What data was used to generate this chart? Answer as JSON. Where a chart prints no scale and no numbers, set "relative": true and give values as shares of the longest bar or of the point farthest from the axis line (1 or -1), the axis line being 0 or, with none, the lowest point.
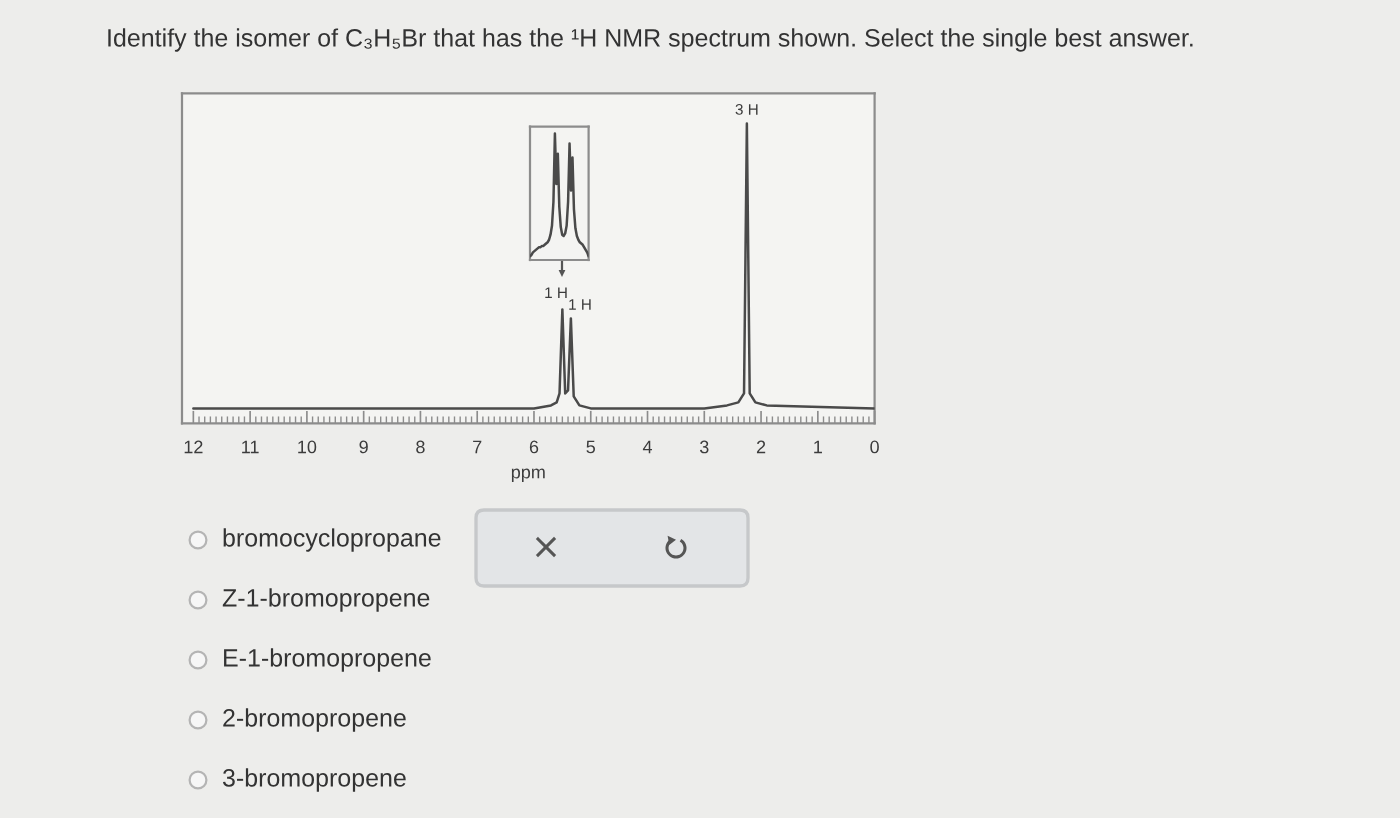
{
  "chart_data": [
    {
      "type": "line",
      "title": "Identify the isomer of C₃H₅Br that has the ¹H NMR spectrum shown. Select the single best answer.",
      "xlabel": "ppm",
      "relative": true,
      "tick_labels": "x",
      "color": "#4a4a4a",
      "x": [
        12,
        6,
        5.7,
        5.6,
        5.55,
        5.5,
        5.45,
        5.4,
        5.35,
        5.3,
        5.2,
        5,
        3,
        2.6,
        2.4,
        2.3,
        2.25,
        2.2,
        2.1,
        1.9,
        0
      ],
      "values": [
        0.05,
        0.05,
        0.06,
        0.07,
        0.1,
        0.38,
        0.1,
        0.11,
        0.35,
        0.09,
        0.06,
        0.05,
        0.05,
        0.06,
        0.07,
        0.1,
        1,
        0.1,
        0.07,
        0.06,
        0.05
      ],
      "xlim": [
        12.2,
        0
      ],
      "xticks": [
        12,
        11,
        10,
        9,
        8,
        7,
        6,
        5,
        4,
        3,
        2,
        1,
        0,
        {
          "value": 11.9,
          "label": null
        },
        {
          "value": 11.8,
          "label": null
        },
        {
          "value": 11.7,
          "label": null
        },
        {
          "value": 11.6,
          "label": null
        },
        {
          "value": 11.5,
          "label": null
        },
        {
          "value": 11.4,
          "label": null
        },
        {
          "value": 11.3,
          "label": null
        },
        {
          "value": 11.2,
          "label": null
        },
        {
          "value": 11.1,
          "label": null
        },
        {
          "value": 10.9,
          "label": null
        },
        {
          "value": 10.8,
          "label": null
        },
        {
          "value": 10.7,
          "label": null
        },
        {
          "value": 10.6,
          "label": null
        },
        {
          "value": 10.5,
          "label": null
        },
        {
          "value": 10.4,
          "label": null
        },
        {
          "value": 10.3,
          "label": null
        },
        {
          "value": 10.2,
          "label": null
        },
        {
          "value": 10.1,
          "label": null
        },
        {
          "value": 9.9,
          "label": null
        },
        {
          "value": 9.8,
          "label": null
        },
        {
          "value": 9.7,
          "label": null
        },
        {
          "value": 9.6,
          "label": null
        },
        {
          "value": 9.5,
          "label": null
        },
        {
          "value": 9.4,
          "label": null
        },
        {
          "value": 9.3,
          "label": null
        },
        {
          "value": 9.2,
          "label": null
        },
        {
          "value": 9.1,
          "label": null
        },
        {
          "value": 8.9,
          "label": null
        },
        {
          "value": 8.8,
          "label": null
        },
        {
          "value": 8.7,
          "label": null
        },
        {
          "value": 8.6,
          "label": null
        },
        {
          "value": 8.5,
          "label": null
        },
        {
          "value": 8.4,
          "label": null
        },
        {
          "value": 8.3,
          "label": null
        },
        {
          "value": 8.2,
          "label": null
        },
        {
          "value": 8.1,
          "label": null
        },
        {
          "value": 7.9,
          "label": null
        },
        {
          "value": 7.8,
          "label": null
        },
        {
          "value": 7.7,
          "label": null
        },
        {
          "value": 7.6,
          "label": null
        },
        {
          "value": 7.5,
          "label": null
        },
        {
          "value": 7.4,
          "label": null
        },
        {
          "value": 7.3,
          "label": null
        },
        {
          "value": 7.2,
          "label": null
        },
        {
          "value": 7.1,
          "label": null
        },
        {
          "value": 6.9,
          "label": null
        },
        {
          "value": 6.8,
          "label": null
        },
        {
          "value": 6.7,
          "label": null
        },
        {
          "value": 6.6,
          "label": null
        },
        {
          "value": 6.5,
          "label": null
        },
        {
          "value": 6.4,
          "label": null
        },
        {
          "value": 6.3,
          "label": null
        },
        {
          "value": 6.2,
          "label": null
        },
        {
          "value": 6.1,
          "label": null
        },
        {
          "value": 5.9,
          "label": null
        },
        {
          "value": 5.8,
          "label": null
        },
        {
          "value": 5.7,
          "label": null
        },
        {
          "value": 5.6,
          "label": null
        },
        {
          "value": 5.5,
          "label": null
        },
        {
          "value": 5.4,
          "label": null
        },
        {
          "value": 5.3,
          "label": null
        },
        {
          "value": 5.2,
          "label": null
        },
        {
          "value": 5.1,
          "label": null
        },
        {
          "value": 4.9,
          "label": null
        },
        {
          "value": 4.8,
          "label": null
        },
        {
          "value": 4.7,
          "label": null
        },
        {
          "value": 4.6,
          "label": null
        },
        {
          "value": 4.5,
          "label": null
        },
        {
          "value": 4.4,
          "label": null
        },
        {
          "value": 4.3,
          "label": null
        },
        {
          "value": 4.2,
          "label": null
        },
        {
          "value": 4.1,
          "label": null
        },
        {
          "value": 3.9,
          "label": null
        },
        {
          "value": 3.8,
          "label": null
        },
        {
          "value": 3.7,
          "label": null
        },
        {
          "value": 3.6,
          "label": null
        },
        {
          "value": 3.5,
          "label": null
        },
        {
          "value": 3.4,
          "label": null
        },
        {
          "value": 3.3,
          "label": null
        },
        {
          "value": 3.2,
          "label": null
        },
        {
          "value": 3.1,
          "label": null
        },
        {
          "value": 2.9,
          "label": null
        },
        {
          "value": 2.8,
          "label": null
        },
        {
          "value": 2.7,
          "label": null
        },
        {
          "value": 2.6,
          "label": null
        },
        {
          "value": 2.5,
          "label": null
        },
        {
          "value": 2.4,
          "label": null
        },
        {
          "value": 2.3,
          "label": null
        },
        {
          "value": 2.2,
          "label": null
        },
        {
          "value": 2.1,
          "label": null
        },
        {
          "value": 1.9,
          "label": null
        },
        {
          "value": 1.8,
          "label": null
        },
        {
          "value": 1.7,
          "label": null
        },
        {
          "value": 1.6,
          "label": null
        },
        {
          "value": 1.5,
          "label": null
        },
        {
          "value": 1.4,
          "label": null
        },
        {
          "value": 1.3,
          "label": null
        },
        {
          "value": 1.2,
          "label": null
        },
        {
          "value": 1.1,
          "label": null
        },
        {
          "value": 0.9,
          "label": null
        },
        {
          "value": 0.8,
          "label": null
        },
        {
          "value": 0.7,
          "label": null
        },
        {
          "value": 0.6,
          "label": null
        },
        {
          "value": 0.5,
          "label": null
        },
        {
          "value": 0.4,
          "label": null
        },
        {
          "value": 0.3,
          "label": null
        },
        {
          "value": 0.2,
          "label": null
        },
        {
          "value": 0.1,
          "label": null
        }
      ],
      "annotations": [
        {
          "text": "1 H",
          "x": 5.5,
          "y": 0.38
        },
        {
          "text": "1 H",
          "x": 5.35,
          "y": 0.35
        },
        {
          "text": "3 H",
          "x": 2.25,
          "y": 1
        },
        "bromocyclopropane",
        "Z-1-bromopropene",
        "E-1-bromopropene",
        "2-bromopropene",
        "3-bromopropene"
      ]
    },
    {
      "type": "line",
      "relative": true,
      "color": "#4a4a4a",
      "categories": [
        null,
        null,
        null,
        null,
        null,
        null,
        null,
        null,
        null,
        null,
        null,
        null,
        null,
        null,
        null,
        null,
        null,
        null,
        null,
        null,
        null,
        null,
        null,
        null,
        null,
        null,
        null,
        null,
        null,
        null,
        null,
        null,
        null,
        null,
        null,
        null,
        null,
        null,
        null,
        null,
        null
      ],
      "values": [
        0.03,
        0.04,
        0.06,
        0.07,
        0.08,
        0.09,
        0.1,
        0.1,
        0.11,
        0.11,
        0.12,
        0.13,
        0.14,
        0.16,
        0.2,
        0.27,
        0.46,
        1,
        0.6,
        0.84,
        0.42,
        0.26,
        0.2,
        0.19,
        0.21,
        0.27,
        0.46,
        0.92,
        0.55,
        0.81,
        0.4,
        0.25,
        0.19,
        0.16,
        0.14,
        0.13,
        0.12,
        0.1,
        0.08,
        0.06,
        0.03
      ]
    }
  ]
}
